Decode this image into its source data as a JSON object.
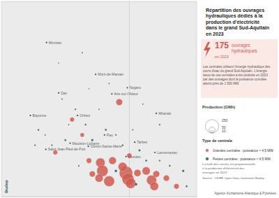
{
  "chart_data": {
    "type": "scatter",
    "title": "Répartition des ouvrages\nhydrauliques dédiés à la\nproduction d'électricité\ndans le grand Sud-Aquitain\nen 2023",
    "xlim": [
      -1.9,
      1.0
    ],
    "ylim": [
      42.7,
      44.6
    ],
    "tick_labels": false,
    "grid": false,
    "legend": "right",
    "count": 175,
    "count_label": "ouvrages\nhydrauliques",
    "count_sub": "en 2023",
    "description": "Les centrales utilisent l'énergie hydraulique des cours d'eau du grand Sud-Aquitain. L'énergie issue de ces centrales a été produite en 2023 par des ouvrages dont la puissance cumulée atteint près de 1 500 MW.",
    "size_legend": {
      "title": "Production (GWh)",
      "values": [
        250,
        50,
        10
      ]
    },
    "type_legend_title": "Type de centrale",
    "series": [
      {
        "name": "Grandes centrales : puissance > 4,5 MW",
        "color": "#cf5a50",
        "points": [
          [
            -0.15,
            43.62,
            60
          ],
          [
            -0.43,
            43.03,
            120
          ],
          [
            -0.4,
            42.95,
            180
          ],
          [
            -0.45,
            42.88,
            90
          ],
          [
            -0.05,
            42.93,
            250
          ],
          [
            -0.02,
            42.87,
            200
          ],
          [
            0.02,
            42.83,
            150
          ],
          [
            -0.1,
            42.99,
            110
          ],
          [
            0.12,
            42.93,
            70
          ],
          [
            0.33,
            42.86,
            140
          ],
          [
            0.37,
            42.8,
            100
          ],
          [
            0.4,
            42.92,
            60
          ],
          [
            -0.25,
            43.05,
            80
          ],
          [
            -0.6,
            43.05,
            40
          ],
          [
            -0.55,
            42.92,
            50
          ],
          [
            -1.1,
            43.13,
            30
          ],
          [
            0.25,
            42.95,
            90
          ],
          [
            -0.3,
            42.85,
            160
          ],
          [
            0.55,
            42.88,
            50
          ],
          [
            0.7,
            42.8,
            40
          ],
          [
            -0.7,
            43.3,
            25
          ],
          [
            -0.85,
            43.45,
            30
          ],
          [
            0.0,
            43.1,
            35
          ]
        ]
      },
      {
        "name": "Petites centrales : puissance < 4,5 MW",
        "color": "#1f5763",
        "points": [
          [
            -1.35,
            43.35,
            5
          ],
          [
            -1.25,
            43.3,
            3
          ],
          [
            -1.15,
            43.2,
            4
          ],
          [
            -0.95,
            43.25,
            6
          ],
          [
            -0.9,
            43.4,
            3
          ],
          [
            -0.8,
            43.55,
            4
          ],
          [
            -0.65,
            43.4,
            5
          ],
          [
            -0.55,
            43.25,
            8
          ],
          [
            -0.35,
            43.35,
            6
          ],
          [
            -0.2,
            43.3,
            4
          ],
          [
            -0.1,
            43.2,
            5
          ],
          [
            0.05,
            43.35,
            3
          ],
          [
            0.15,
            43.15,
            7
          ],
          [
            0.25,
            43.05,
            6
          ],
          [
            0.45,
            43.05,
            4
          ],
          [
            0.6,
            43.0,
            5
          ],
          [
            0.8,
            42.95,
            8
          ],
          [
            0.85,
            42.8,
            6
          ],
          [
            -0.75,
            43.0,
            4
          ],
          [
            -0.2,
            42.95,
            10
          ],
          [
            0.1,
            42.82,
            9
          ],
          [
            -1.0,
            43.65,
            3
          ],
          [
            -0.6,
            43.75,
            2
          ],
          [
            -0.3,
            43.8,
            3
          ],
          [
            -1.05,
            44.0,
            2
          ],
          [
            -0.7,
            44.1,
            3
          ],
          [
            0.2,
            43.6,
            3
          ],
          [
            0.45,
            43.4,
            4
          ],
          [
            -0.45,
            43.55,
            3
          ],
          [
            -1.4,
            43.2,
            4
          ]
        ]
      }
    ],
    "cities": [
      {
        "name": "Mimizan",
        "lon": -1.23,
        "lat": 44.2
      },
      {
        "name": "Mont-de-Marsan",
        "lon": -0.5,
        "lat": 43.89
      },
      {
        "name": "Dax",
        "lon": -1.05,
        "lat": 43.71
      },
      {
        "name": "Bayonne",
        "lon": -1.47,
        "lat": 43.49
      },
      {
        "name": "Orthez",
        "lon": -0.77,
        "lat": 43.49
      },
      {
        "name": "Aire-sur-l'Adour",
        "lon": -0.26,
        "lat": 43.7
      },
      {
        "name": "Nogaro",
        "lon": -0.03,
        "lat": 43.76
      },
      {
        "name": "Pau",
        "lon": -0.37,
        "lat": 43.3
      },
      {
        "name": "Tarbes",
        "lon": 0.08,
        "lat": 43.23
      },
      {
        "name": "Mirande",
        "lon": 0.4,
        "lat": 43.51
      },
      {
        "name": "Oloron-Sainte-Marie",
        "lon": -0.61,
        "lat": 43.19
      },
      {
        "name": "Mauléon-Licharre",
        "lon": -0.88,
        "lat": 43.22
      },
      {
        "name": "Saint-Jean-Pied-de-Port",
        "lon": -1.24,
        "lat": 43.16
      },
      {
        "name": "Lourdes",
        "lon": -0.05,
        "lat": 43.09
      },
      {
        "name": "Lannemezan",
        "lon": 0.38,
        "lat": 43.13
      }
    ],
    "notes": "La taille des cercles est proportionnelle à la production d'électricité des ouvrages en 2023.",
    "source": "Source : ODRÉ Open Data, traitement Budep",
    "footer": "Agence d'urbanisme Atlantique & Pyrénées",
    "logo": "Budep"
  }
}
